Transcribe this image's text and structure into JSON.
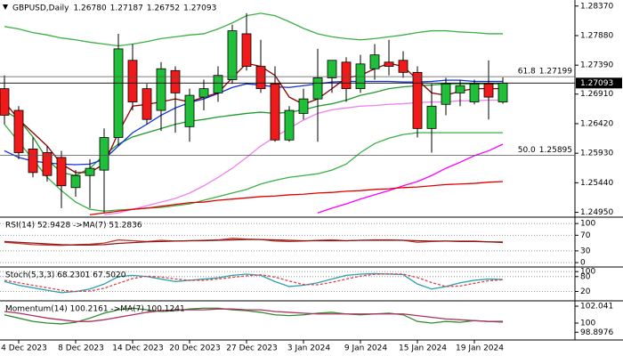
{
  "chart_data": [
    {
      "type": "candlestick",
      "title": "GBPUSD,Daily",
      "ohlc_labels": [
        "1.26780",
        "1.27187",
        "1.26752",
        "1.27093"
      ],
      "categories": [
        null,
        "4 Dec 2023",
        null,
        null,
        null,
        "8 Dec 2023",
        null,
        null,
        null,
        "14 Dec 2023",
        null,
        null,
        null,
        "20 Dec 2023",
        null,
        null,
        null,
        "27 Dec 2023",
        null,
        null,
        null,
        "3 Jan 2024",
        null,
        null,
        null,
        "9 Jan 2024",
        null,
        null,
        null,
        "15 Jan 2024",
        null,
        null,
        null,
        "19 Jan 2024",
        null,
        null
      ],
      "open": [
        1.27,
        1.2664,
        1.26,
        1.2594,
        1.2586,
        1.2536,
        1.2556,
        1.2565,
        1.2619,
        1.2747,
        1.27,
        1.2664,
        1.273,
        1.2637,
        1.2686,
        1.2693,
        1.2715,
        1.2791,
        1.2737,
        1.2708,
        1.2615,
        1.2659,
        1.2683,
        1.2718,
        1.2744,
        1.27,
        1.2733,
        1.2744,
        1.2747,
        1.2727,
        1.2634,
        1.2674,
        1.2693,
        1.2678,
        1.2708,
        1.2678
      ],
      "high": [
        1.2722,
        1.2671,
        1.2619,
        1.2605,
        1.2597,
        1.2565,
        1.2583,
        1.2634,
        1.2791,
        1.2774,
        1.2708,
        1.2744,
        1.2737,
        1.27,
        1.2715,
        1.2737,
        1.2806,
        1.2825,
        1.2781,
        1.2737,
        1.2671,
        1.27,
        1.2766,
        1.2747,
        1.2752,
        1.2756,
        1.2774,
        1.2781,
        1.2762,
        1.2737,
        1.2708,
        1.2718,
        1.2715,
        1.2715,
        1.2747,
        1.27187
      ],
      "low": [
        1.2641,
        1.2583,
        1.2553,
        1.2546,
        1.2502,
        1.2521,
        1.2502,
        1.2495,
        1.2605,
        1.2664,
        1.2641,
        1.263,
        1.2627,
        1.2612,
        1.2664,
        1.2678,
        1.2708,
        1.273,
        1.2693,
        1.2612,
        1.2612,
        1.2649,
        1.2612,
        1.2693,
        1.2678,
        1.2693,
        1.2715,
        1.2722,
        1.2718,
        1.2619,
        1.2594,
        1.2656,
        1.2671,
        1.2674,
        1.2649,
        1.26752
      ],
      "close": [
        1.2656,
        1.2594,
        1.2561,
        1.2556,
        1.2539,
        1.2556,
        1.2568,
        1.2619,
        1.2766,
        1.2678,
        1.2649,
        1.2733,
        1.2693,
        1.2689,
        1.27,
        1.2722,
        1.2796,
        1.2737,
        1.27,
        1.2615,
        1.2664,
        1.2683,
        1.2718,
        1.2747,
        1.27,
        1.2741,
        1.2756,
        1.2737,
        1.2727,
        1.2634,
        1.2671,
        1.2708,
        1.2705,
        1.2708,
        1.2686,
        1.27093
      ],
      "up_color": "#1fbf3a",
      "down_color": "#f01a1a",
      "ylim": [
        1.2487,
        1.2847
      ],
      "yticks": [
        {
          "value": 1.2837,
          "label": "1.28370"
        },
        {
          "value": 1.2788,
          "label": "1.27880"
        },
        {
          "value": 1.2739,
          "label": "1.27390"
        },
        {
          "value": 1.2691,
          "label": "1.26910"
        },
        {
          "value": 1.2642,
          "label": "1.26420"
        },
        {
          "value": 1.2593,
          "label": "1.25930"
        },
        {
          "value": 1.2544,
          "label": "1.25440"
        },
        {
          "value": 1.2495,
          "label": "1.24950"
        }
      ],
      "overlays": [
        {
          "color": "#3cb043",
          "values": [
            1.2803,
            1.2799,
            1.2793,
            1.2789,
            1.2784,
            1.2781,
            1.2777,
            1.2774,
            1.2771,
            1.2774,
            1.2778,
            1.2783,
            1.2786,
            1.2789,
            1.2791,
            1.2799,
            1.2809,
            1.2821,
            1.2825,
            1.2821,
            1.2811,
            1.28,
            1.2791,
            1.2786,
            1.2783,
            1.2781,
            1.2783,
            1.2786,
            1.2789,
            1.2793,
            1.2796,
            1.2796,
            1.2794,
            1.2793,
            1.2791,
            1.2791
          ]
        },
        {
          "color": "#3cb043",
          "values": [
            1.2641,
            1.2612,
            1.2583,
            1.2553,
            1.2531,
            1.2512,
            1.25,
            1.2497,
            1.2499,
            1.25,
            1.2502,
            1.2503,
            1.2506,
            1.2509,
            1.2515,
            1.2521,
            1.2527,
            1.2533,
            1.2542,
            1.2548,
            1.2553,
            1.2556,
            1.2559,
            1.2565,
            1.2575,
            1.2594,
            1.2609,
            1.2618,
            1.2624,
            1.2627,
            1.2627,
            1.2627,
            1.2627,
            1.2627,
            1.2627,
            1.2627
          ]
        },
        {
          "color": "#ee82ee",
          "values": [
            null,
            null,
            null,
            null,
            null,
            null,
            null,
            1.2491,
            1.2494,
            1.25,
            1.2506,
            1.2512,
            1.2518,
            1.2527,
            1.2539,
            1.2553,
            1.2568,
            1.2586,
            1.2605,
            1.262,
            1.2634,
            1.2648,
            1.2659,
            1.2665,
            1.2668,
            1.2671,
            1.2672,
            1.2674,
            1.2675,
            1.2677,
            1.2678,
            1.2678,
            1.268,
            1.268,
            1.2681,
            1.2681
          ]
        },
        {
          "color": "#ff00ff",
          "values": [
            null,
            null,
            null,
            null,
            null,
            null,
            null,
            null,
            null,
            null,
            null,
            null,
            null,
            null,
            null,
            null,
            null,
            null,
            null,
            null,
            null,
            null,
            1.2494,
            1.2502,
            1.2509,
            1.2517,
            1.2524,
            1.2531,
            1.2539,
            1.2546,
            1.2556,
            1.2568,
            1.2578,
            1.2589,
            1.2597,
            1.2608
          ]
        },
        {
          "color": "#e00000",
          "values": [
            null,
            null,
            null,
            null,
            null,
            null,
            1.2491,
            1.2494,
            1.2497,
            1.25,
            1.2502,
            1.2505,
            1.2508,
            1.2511,
            1.2512,
            1.2515,
            1.2517,
            1.2519,
            1.2521,
            1.2522,
            1.2524,
            1.2525,
            1.2527,
            1.2528,
            1.253,
            1.2531,
            1.2533,
            1.2534,
            1.2536,
            1.2537,
            1.2539,
            1.2541,
            1.2542,
            1.2543,
            1.2545,
            1.2546
          ]
        },
        {
          "color": "#1f9a2a",
          "values": [
            1.2664,
            1.2649,
            1.262,
            1.2583,
            1.2561,
            1.2556,
            1.2568,
            1.259,
            1.2608,
            1.262,
            1.2627,
            1.2634,
            1.2641,
            1.2646,
            1.2649,
            1.2653,
            1.2656,
            1.2659,
            1.2661,
            1.2659,
            1.2661,
            1.2665,
            1.2671,
            1.2675,
            1.2681,
            1.2689,
            1.2694,
            1.27,
            1.2703,
            1.2705,
            1.2706,
            1.2708,
            1.2708,
            1.2708,
            1.2708,
            1.2708
          ]
        },
        {
          "color": "#1030e0",
          "values": [
            1.2597,
            1.2586,
            1.258,
            1.2577,
            1.2575,
            1.2574,
            1.2575,
            1.2583,
            1.2605,
            1.2627,
            1.2641,
            1.2656,
            1.2668,
            1.2677,
            1.2683,
            1.2692,
            1.2702,
            1.2708,
            1.2706,
            1.2703,
            1.2702,
            1.2705,
            1.2708,
            1.2711,
            1.2712,
            1.2712,
            1.2712,
            1.2712,
            1.2711,
            1.2711,
            1.2712,
            1.2714,
            1.2714,
            1.2712,
            1.2712,
            1.2712
          ]
        },
        {
          "color": "#8b0000",
          "values": [
            1.2678,
            1.2649,
            1.2627,
            1.2605,
            1.2575,
            1.2561,
            1.2561,
            1.2575,
            1.2627,
            1.2671,
            1.2674,
            1.2678,
            1.2683,
            1.2678,
            1.2686,
            1.2693,
            1.2718,
            1.2742,
            1.2737,
            1.2722,
            1.2686,
            1.2674,
            1.2683,
            1.27,
            1.2718,
            1.2722,
            1.2733,
            1.2742,
            1.2737,
            1.2715,
            1.2693,
            1.2689,
            1.2696,
            1.27,
            1.27,
            1.27
          ]
        }
      ],
      "levels": [
        {
          "label": "61.8",
          "value": 1.27199
        },
        {
          "label": "50.0",
          "value": 1.25895
        }
      ],
      "last_price": {
        "value": 1.27093,
        "label": "1.27093"
      }
    },
    {
      "type": "line",
      "title": "RSI(14) 52.9428 ->MA(7) 51.2836",
      "ylim": [
        -9,
        114
      ],
      "yticks": [
        100,
        70,
        30,
        0
      ],
      "grid": true,
      "series": [
        {
          "color": "#c0392b",
          "values": [
            52,
            49,
            46,
            45,
            44,
            46,
            47,
            50,
            58,
            56,
            54,
            57,
            55,
            56,
            57,
            58,
            62,
            60,
            59,
            55,
            54,
            55,
            57,
            58,
            56,
            57,
            58,
            58,
            57,
            52,
            54,
            55,
            55,
            55,
            53,
            52.9428
          ]
        },
        {
          "color": "#8b1a1a",
          "values": [
            54,
            52,
            50,
            48,
            46,
            45,
            45,
            46,
            49,
            51,
            53,
            54,
            55,
            56,
            56,
            57,
            58,
            59,
            59,
            58,
            57,
            56,
            56,
            56,
            56,
            57,
            57,
            57,
            57,
            56,
            55,
            55,
            54,
            54,
            53,
            51.2836
          ]
        }
      ]
    },
    {
      "type": "line",
      "title": "Stoch(5,3,3) 68.2301 67.5020",
      "ylim": [
        -14,
        115
      ],
      "yticks": [
        100,
        80,
        20
      ],
      "grid": true,
      "series": [
        {
          "color": "#2aa0b0",
          "values": [
            60,
            45,
            35,
            25,
            15,
            20,
            30,
            50,
            80,
            85,
            80,
            70,
            60,
            65,
            70,
            75,
            85,
            90,
            85,
            60,
            40,
            45,
            55,
            70,
            85,
            90,
            92,
            90,
            88,
            50,
            30,
            40,
            55,
            65,
            70,
            68.2301
          ]
        },
        {
          "color": "#e04040",
          "dash": true,
          "values": [
            65,
            55,
            45,
            35,
            25,
            20,
            22,
            33,
            53,
            72,
            82,
            78,
            70,
            65,
            65,
            70,
            77,
            83,
            87,
            78,
            62,
            48,
            47,
            57,
            70,
            82,
            89,
            91,
            90,
            76,
            56,
            40,
            42,
            53,
            63,
            67.502
          ]
        }
      ]
    },
    {
      "type": "line",
      "title": "Momentum(14) 100.2161 ->MA(7) 100.1241",
      "ylim": [
        98.07,
        102.58
      ],
      "yticks": [
        102.041,
        100,
        98.8976
      ],
      "grid": false,
      "series": [
        {
          "color": "#2e8b2e",
          "values": [
            101.0,
            100.6,
            100.2,
            100.0,
            99.9,
            100.1,
            100.6,
            101.2,
            101.6,
            101.8,
            101.6,
            101.4,
            101.5,
            101.7,
            101.8,
            101.8,
            101.6,
            101.5,
            101.3,
            101.0,
            100.9,
            101.0,
            101.2,
            101.3,
            101.1,
            101.0,
            101.1,
            101.2,
            101.0,
            100.2,
            100.0,
            100.2,
            100.1,
            100.3,
            100.2,
            100.2161
          ]
        },
        {
          "color": "#b03060",
          "values": [
            101.4,
            101.2,
            100.9,
            100.6,
            100.4,
            100.2,
            100.2,
            100.4,
            100.7,
            101.0,
            101.3,
            101.5,
            101.6,
            101.6,
            101.6,
            101.7,
            101.7,
            101.6,
            101.6,
            101.4,
            101.3,
            101.2,
            101.1,
            101.1,
            101.1,
            101.1,
            101.1,
            101.1,
            101.1,
            100.9,
            100.7,
            100.5,
            100.4,
            100.3,
            100.2,
            100.1241
          ]
        }
      ]
    }
  ]
}
